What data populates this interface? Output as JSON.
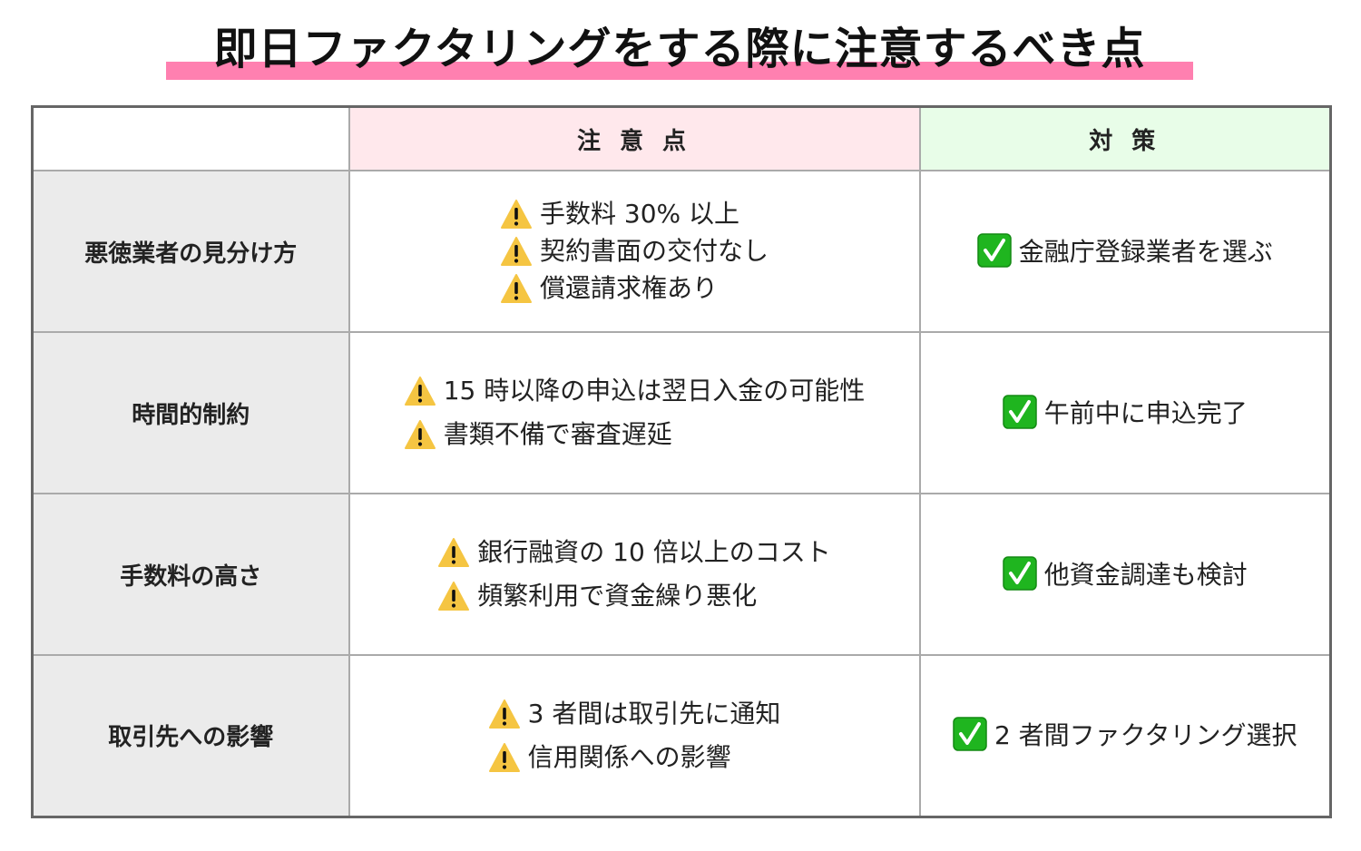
{
  "title": "即日ファクタリングをする際に注意するべき点",
  "colors": {
    "title_underline": "#ff80b0",
    "caution_header_bg": "#ffe8ec",
    "measure_header_bg": "#e8fde8",
    "row_header_bg": "#ebebeb",
    "warning_icon": "#f5c542",
    "check_icon": "#1fb51f"
  },
  "table": {
    "headers": {
      "blank": "",
      "caution": "注 意 点",
      "measure": "対 策"
    },
    "rows": [
      {
        "label": "悪徳業者の見分け方",
        "cautions": [
          "手数料 30% 以上",
          "契約書面の交付なし",
          "償還請求権あり"
        ],
        "measure": "金融庁登録業者を選ぶ"
      },
      {
        "label": "時間的制約",
        "cautions": [
          "15 時以降の申込は翌日入金の可能性",
          "書類不備で審査遅延"
        ],
        "measure": "午前中に申込完了"
      },
      {
        "label": "手数料の高さ",
        "cautions": [
          "銀行融資の 10 倍以上のコスト",
          "頻繁利用で資金繰り悪化"
        ],
        "measure": "他資金調達も検討"
      },
      {
        "label": "取引先への影響",
        "cautions": [
          "3 者間は取引先に通知",
          "信用関係への影響"
        ],
        "measure": "2 者間ファクタリング選択"
      }
    ]
  },
  "icons": {
    "caution": "warning-icon",
    "measure": "check-mark-button-icon"
  }
}
